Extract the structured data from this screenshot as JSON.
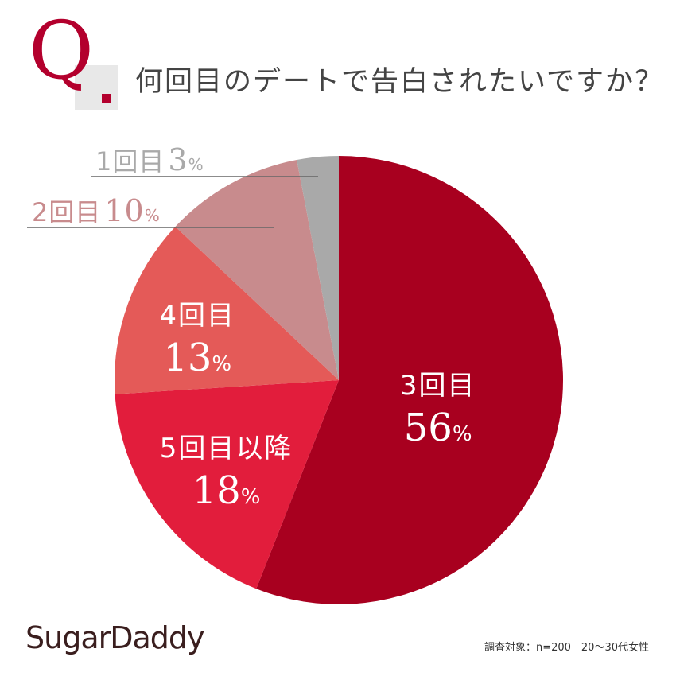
{
  "header": {
    "q_letter": "Q",
    "question": "何回目のデートで告白されたいですか？"
  },
  "chart_data": {
    "type": "pie",
    "title": "何回目のデートで告白されたいですか？",
    "slices": [
      {
        "label": "3回目",
        "value": 56,
        "display": "56",
        "color": "#a8001f"
      },
      {
        "label": "5回目以降",
        "value": 18,
        "display": "18",
        "color": "#e21d3c"
      },
      {
        "label": "4回目",
        "value": 13,
        "display": "13",
        "color": "#e45a58"
      },
      {
        "label": "2回目",
        "value": 10,
        "display": "10",
        "color": "#c88b8d"
      },
      {
        "label": "1回目",
        "value": 3,
        "display": "3",
        "color": "#a9a9a9"
      }
    ],
    "unit": "%",
    "start_angle_deg": 0,
    "direction": "clockwise"
  },
  "brand": "SugarDaddy",
  "footnote": "調査対象：n=200　20～30代女性"
}
